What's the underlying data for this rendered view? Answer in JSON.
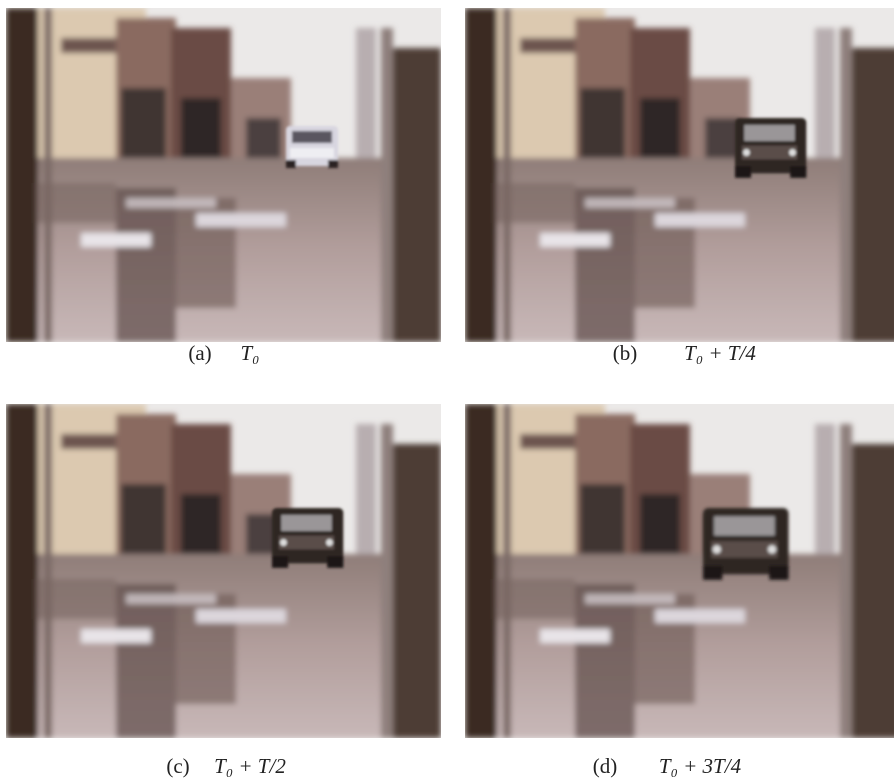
{
  "figure": {
    "panels": [
      {
        "label": "(a)",
        "caption": "T₀"
      },
      {
        "label": "(b)",
        "caption": "T₀ + T/4"
      },
      {
        "label": "(c)",
        "caption": "T₀ + T/2"
      },
      {
        "label": "(d)",
        "caption": "T₀ + 3T/4"
      }
    ]
  }
}
